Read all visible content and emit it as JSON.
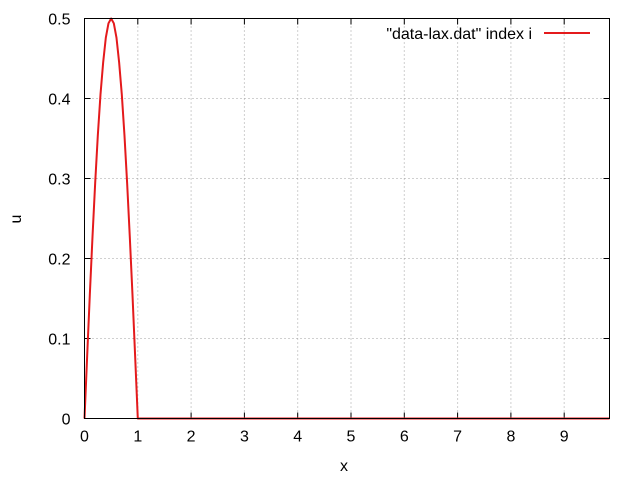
{
  "chart_data": {
    "type": "line",
    "xlabel": "x",
    "ylabel": "u",
    "xlim": [
      0,
      9.85
    ],
    "ylim": [
      0,
      0.5
    ],
    "xticks": [
      0,
      1,
      2,
      3,
      4,
      5,
      6,
      7,
      8,
      9
    ],
    "xtick_labels": [
      "0",
      "1",
      "2",
      "3",
      "4",
      "5",
      "6",
      "7",
      "8",
      "9"
    ],
    "yticks": [
      0,
      0.1,
      0.2,
      0.3,
      0.4,
      0.5
    ],
    "ytick_labels": [
      "0",
      "0.1",
      "0.2",
      "0.3",
      "0.4",
      "0.5"
    ],
    "grid": true,
    "legend_position": "top-right",
    "series": [
      {
        "name": "\"data-lax.dat\" index i",
        "color": "#e41a1c",
        "x": [
          0,
          0.05,
          0.1,
          0.15,
          0.2,
          0.25,
          0.3,
          0.35,
          0.4,
          0.45,
          0.5,
          0.55,
          0.6,
          0.65,
          0.7,
          0.75,
          0.8,
          0.85,
          0.9,
          0.95,
          1.0,
          1.5,
          2,
          3,
          4,
          5,
          6,
          7,
          8,
          9,
          9.85
        ],
        "y": [
          0,
          0.078,
          0.155,
          0.227,
          0.294,
          0.354,
          0.405,
          0.445,
          0.476,
          0.494,
          0.5,
          0.494,
          0.476,
          0.445,
          0.405,
          0.354,
          0.294,
          0.227,
          0.155,
          0.078,
          0,
          0,
          0,
          0,
          0,
          0,
          0,
          0,
          0,
          0,
          0
        ]
      }
    ]
  }
}
